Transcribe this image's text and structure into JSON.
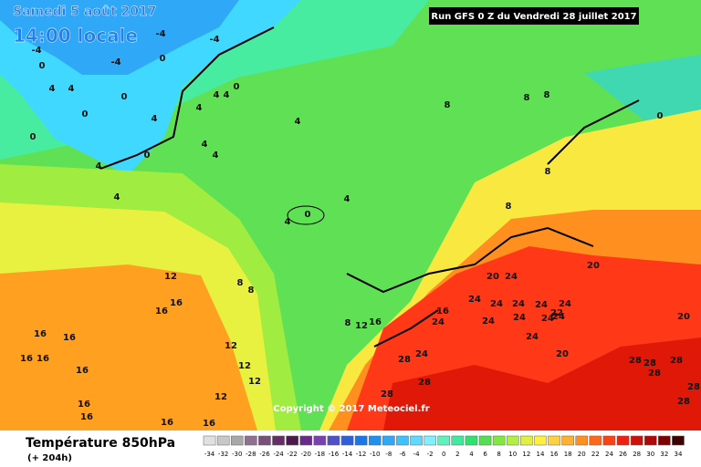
{
  "header": {
    "date": "Samedi 5 août 2017",
    "time": "14:00 locale",
    "run": "Run GFS 0 Z du Vendredi 28 juillet 2017"
  },
  "footer": {
    "title": "Température 850hPa",
    "lead": "(+ 204h)",
    "copyright": "Copyright © 2017 Meteociel.fr"
  },
  "legend": {
    "values": [
      -34,
      -32,
      -30,
      -28,
      -26,
      -24,
      -22,
      -20,
      -18,
      -16,
      -14,
      -12,
      -10,
      -8,
      -6,
      -4,
      -2,
      0,
      2,
      4,
      6,
      8,
      10,
      12,
      14,
      16,
      18,
      20,
      22,
      24,
      26,
      28,
      30,
      32,
      34
    ],
    "colors": [
      "#e0e0e0",
      "#c8c8c8",
      "#a8a8a8",
      "#907090",
      "#7a4f7a",
      "#652f65",
      "#4d1a4d",
      "#6a2a8a",
      "#7a40b0",
      "#5050c8",
      "#3060d8",
      "#1878e8",
      "#2090f0",
      "#30a8f8",
      "#40c0ff",
      "#60d8ff",
      "#80f0ff",
      "#60f0c0",
      "#40e8a0",
      "#30e070",
      "#50e050",
      "#80e840",
      "#b0f040",
      "#e0f040",
      "#fff040",
      "#ffd040",
      "#ffb030",
      "#ff9020",
      "#ff6818",
      "#ff4010",
      "#f02010",
      "#d01008",
      "#b00808",
      "#800000",
      "#400000"
    ]
  },
  "map_labels": [
    -4,
    -4,
    -4,
    0,
    -4,
    0,
    4,
    4,
    0,
    4,
    0,
    0,
    0,
    4,
    4,
    4,
    4,
    0,
    4,
    4,
    4,
    4,
    0,
    4,
    4,
    8,
    8,
    8,
    8,
    8,
    0,
    12,
    16,
    16,
    8,
    8,
    16,
    16,
    16,
    16,
    16,
    16,
    16,
    16,
    16,
    12,
    12,
    12,
    12,
    8,
    12,
    16,
    16,
    24,
    20,
    24,
    20,
    24,
    24,
    24,
    24,
    24,
    22,
    24,
    24,
    24,
    24,
    24,
    20,
    24,
    28,
    20,
    28,
    28,
    28,
    28,
    28,
    28,
    28,
    28
  ]
}
